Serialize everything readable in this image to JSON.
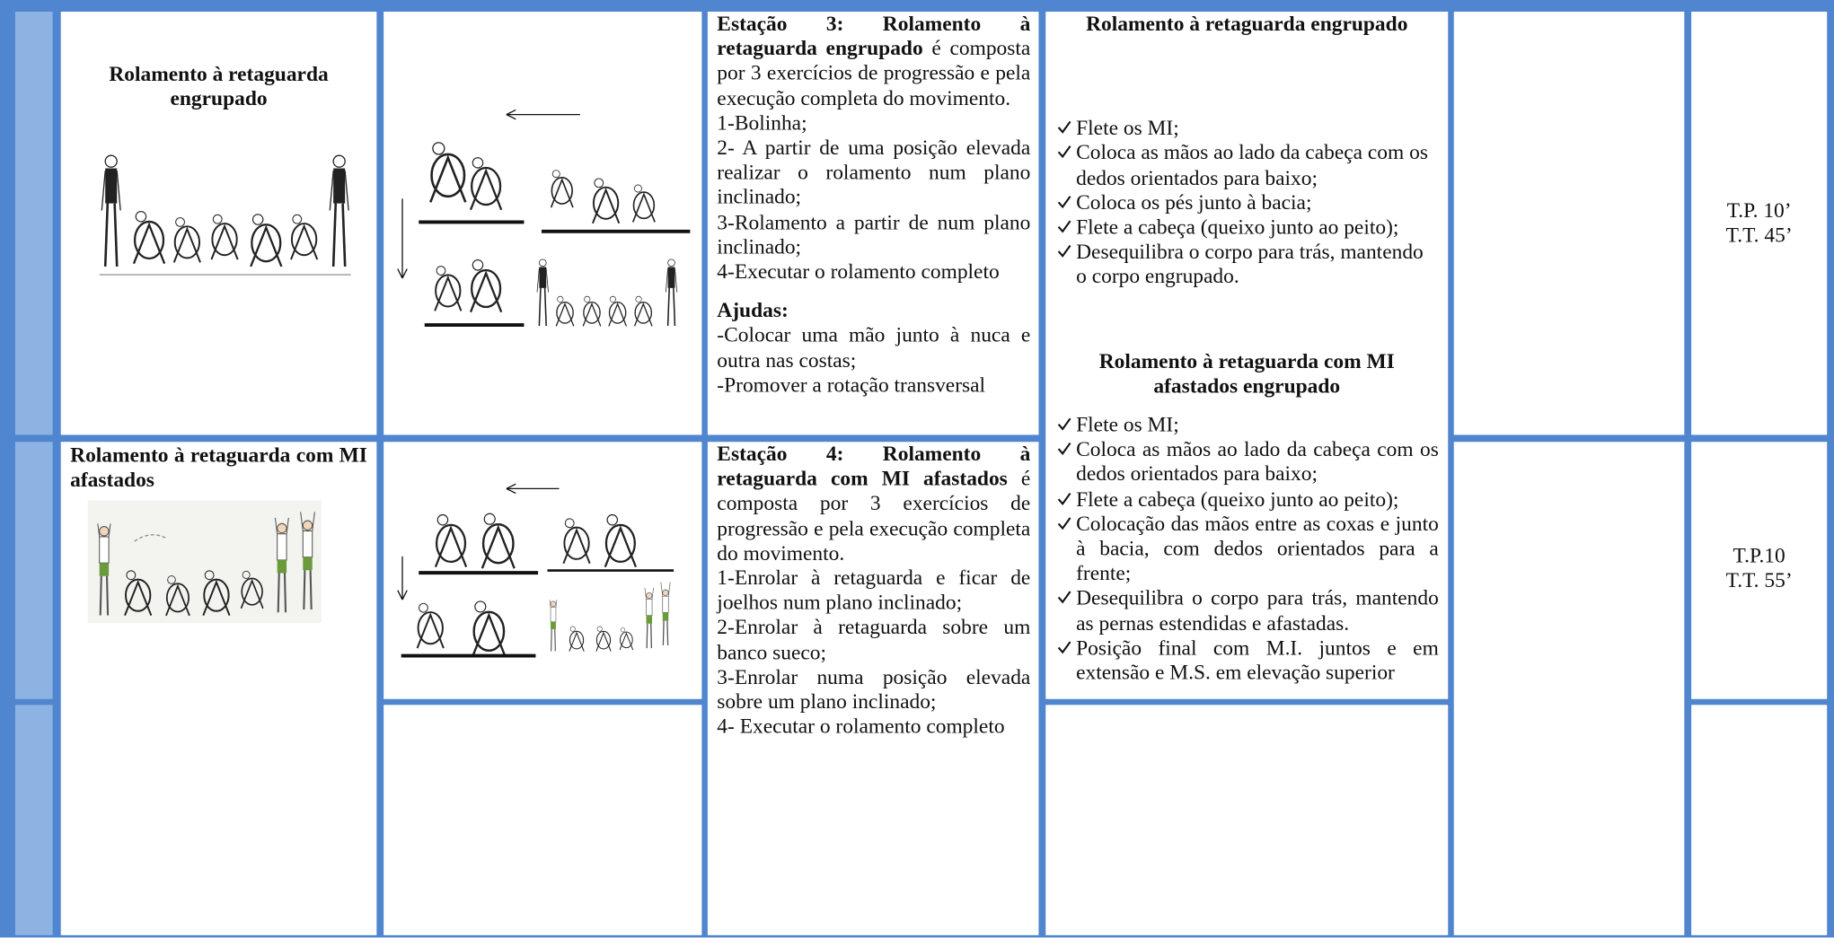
{
  "table": {
    "rows": [
      {
        "skill": "Rolamento à retaguarda engrupado",
        "station": {
          "title": "Estação 3: Rolamento à retaguarda engrupado",
          "intro": "é composta por 3 exercícios de progressão e pela execução completa do movimento.",
          "steps": [
            "1-Bolinha;",
            "2- A partir de uma posição elevada realizar o rolamento num plano inclinado;",
            "3-Rolamento a partir de num plano inclinado;",
            "4-Executar o rolamento completo"
          ],
          "aids_title": "Ajudas:",
          "aids": [
            "-Colocar uma mão junto à nuca e outra nas costas;",
            "-Promover a rotação transversal"
          ]
        },
        "criteria": {
          "title": "Rolamento à retaguarda engrupado",
          "items": [
            "Flete os MI;",
            "Coloca as mãos ao lado da cabeça com os dedos orientados para baixo;",
            "Coloca os pés junto à bacia;",
            "Flete a cabeça (queixo junto ao peito);",
            "Desequilibra o corpo para trás, mantendo o corpo engrupado."
          ]
        },
        "time": [
          "T.P. 10’",
          "T.T. 45’"
        ]
      },
      {
        "skill": "Rolamento à retaguarda com MI afastados",
        "station": {
          "title": "Estação 4: Rolamento à retaguarda com MI afastados",
          "intro": "é composta por 3 exercícios de progressão e pela execução completa do movimento.",
          "steps": [
            "1-Enrolar à retaguarda e ficar de joelhos num plano inclinado;",
            "2-Enrolar à retaguarda sobre um banco sueco;",
            "3-Enrolar numa posição elevada sobre um plano inclinado;",
            "4- Executar o rolamento completo"
          ]
        },
        "criteria": {
          "title": "Rolamento à retaguarda com MI afastados engrupado",
          "items": [
            "Flete os MI;",
            "Coloca as mãos ao lado da cabeça com os dedos orientados para baixo;",
            "Flete a cabeça (queixo junto ao peito);",
            " Colocação das mãos entre as coxas e junto à bacia, com dedos orientados para a frente;",
            "Desequilibra o corpo para trás, mantendo as pernas estendidas e afastadas.",
            "Posição final com M.I. juntos e em extensão e M.S. em elevação superior"
          ]
        },
        "time": [
          "T.P.10",
          "T.T. 55’"
        ]
      }
    ]
  }
}
